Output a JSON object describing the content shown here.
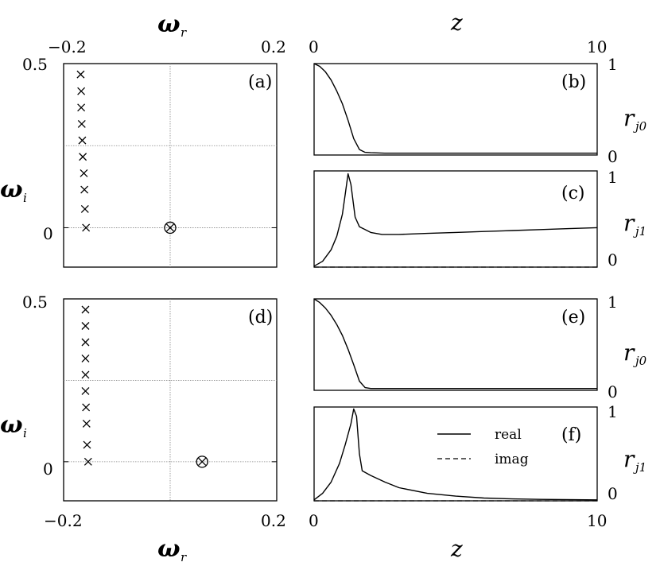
{
  "chart_data": [
    {
      "panel": "(a)",
      "type": "scatter",
      "xlabel": "ω",
      "xlabel_sub": "r",
      "ylabel": "ω",
      "ylabel_sub": "i",
      "xlim": [
        -0.2,
        0.2
      ],
      "ylim": [
        -0.12,
        0.5
      ],
      "xticks": [
        "−0.2",
        "0.2"
      ],
      "yticks": [
        "0.5",
        "0"
      ],
      "ytick_values": [
        0.5,
        0
      ],
      "grid_lines": {
        "x": [
          0.0
        ],
        "y": [
          0.25,
          0.0
        ]
      },
      "series": [
        {
          "marker": "x",
          "x": [
            -0.168,
            -0.167,
            -0.167,
            -0.166,
            -0.165,
            -0.164,
            -0.162,
            -0.161,
            -0.16,
            -0.158
          ],
          "y": [
            0.467,
            0.416,
            0.366,
            0.316,
            0.266,
            0.216,
            0.166,
            0.116,
            0.057,
            0.0
          ]
        },
        {
          "marker": "circle-x",
          "x": [
            0.0
          ],
          "y": [
            0.0
          ]
        }
      ]
    },
    {
      "panel": "(b)",
      "type": "line",
      "xlabel": "z",
      "ylabel": "r",
      "ylabel_sub": "j0",
      "xlim": [
        0,
        10
      ],
      "ylim": [
        0,
        1
      ],
      "xticks": [
        "0",
        "10"
      ],
      "yticks": [
        "1",
        "0"
      ],
      "series": [
        {
          "style": "solid",
          "x": [
            0,
            0.2,
            0.4,
            0.6,
            0.8,
            1.0,
            1.2,
            1.4,
            1.6,
            1.8,
            2.0,
            2.5,
            3,
            5,
            10
          ],
          "y": [
            1.0,
            0.97,
            0.91,
            0.82,
            0.7,
            0.56,
            0.38,
            0.18,
            0.06,
            0.03,
            0.025,
            0.02,
            0.02,
            0.02,
            0.02
          ]
        }
      ]
    },
    {
      "panel": "(c)",
      "type": "line",
      "ylabel": "r",
      "ylabel_sub": "j1",
      "xlim": [
        0,
        10
      ],
      "ylim": [
        0,
        1
      ],
      "yticks": [
        "1",
        "0"
      ],
      "series": [
        {
          "style": "solid",
          "x": [
            0,
            0.3,
            0.6,
            0.8,
            1.0,
            1.1,
            1.2,
            1.3,
            1.45,
            1.6,
            1.8,
            2.0,
            2.4,
            3,
            4,
            5,
            6,
            7,
            8,
            9,
            10
          ],
          "y": [
            0.01,
            0.06,
            0.18,
            0.32,
            0.55,
            0.76,
            0.97,
            0.86,
            0.52,
            0.42,
            0.39,
            0.36,
            0.34,
            0.34,
            0.35,
            0.36,
            0.37,
            0.38,
            0.39,
            0.4,
            0.41
          ]
        },
        {
          "style": "dashed",
          "x": [
            0,
            10
          ],
          "y": [
            0.0,
            0.0
          ]
        }
      ]
    },
    {
      "panel": "(d)",
      "type": "scatter",
      "xlabel": "ω",
      "xlabel_sub": "r",
      "ylabel": "ω",
      "ylabel_sub": "i",
      "xlim": [
        -0.2,
        0.2
      ],
      "ylim": [
        -0.12,
        0.5
      ],
      "xticks": [
        "−0.2",
        "0.2"
      ],
      "yticks": [
        "0.5",
        "0"
      ],
      "ytick_values": [
        0.5,
        0
      ],
      "grid_lines": {
        "x": [
          0.0
        ],
        "y": [
          0.25,
          0.0
        ]
      },
      "series": [
        {
          "marker": "x",
          "x": [
            -0.159,
            -0.159,
            -0.159,
            -0.159,
            -0.159,
            -0.159,
            -0.158,
            -0.157,
            -0.156,
            -0.154
          ],
          "y": [
            0.467,
            0.417,
            0.367,
            0.317,
            0.267,
            0.217,
            0.167,
            0.117,
            0.052,
            0.0
          ]
        },
        {
          "marker": "circle-x",
          "x": [
            0.06
          ],
          "y": [
            0.0
          ]
        }
      ]
    },
    {
      "panel": "(e)",
      "type": "line",
      "ylabel": "r",
      "ylabel_sub": "j0",
      "xlim": [
        0,
        10
      ],
      "ylim": [
        0,
        1
      ],
      "yticks": [
        "1",
        "0"
      ],
      "series": [
        {
          "style": "solid",
          "x": [
            0,
            0.2,
            0.4,
            0.6,
            0.8,
            1.0,
            1.2,
            1.4,
            1.6,
            1.8,
            2.0,
            2.5,
            3,
            5,
            10
          ],
          "y": [
            1.0,
            0.96,
            0.9,
            0.82,
            0.72,
            0.6,
            0.45,
            0.28,
            0.1,
            0.03,
            0.02,
            0.02,
            0.02,
            0.02,
            0.02
          ]
        }
      ]
    },
    {
      "panel": "(f)",
      "type": "line",
      "xlabel": "z",
      "ylabel": "r",
      "ylabel_sub": "j1",
      "xlim": [
        0,
        10
      ],
      "ylim": [
        0,
        1
      ],
      "xticks": [
        "0",
        "10"
      ],
      "yticks": [
        "1",
        "0"
      ],
      "legend": {
        "position": "center-right",
        "entries": [
          "real",
          "imag"
        ]
      },
      "series": [
        {
          "name": "real",
          "style": "solid",
          "x": [
            0,
            0.3,
            0.6,
            0.9,
            1.1,
            1.3,
            1.4,
            1.5,
            1.6,
            1.7,
            2.0,
            2.5,
            3,
            4,
            5,
            6,
            7,
            8,
            10
          ],
          "y": [
            0.01,
            0.08,
            0.2,
            0.4,
            0.6,
            0.82,
            0.98,
            0.9,
            0.5,
            0.32,
            0.27,
            0.2,
            0.14,
            0.08,
            0.05,
            0.03,
            0.02,
            0.015,
            0.01
          ]
        },
        {
          "name": "imag",
          "style": "dashed",
          "x": [
            0,
            10
          ],
          "y": [
            0.0,
            0.0
          ]
        }
      ]
    }
  ]
}
